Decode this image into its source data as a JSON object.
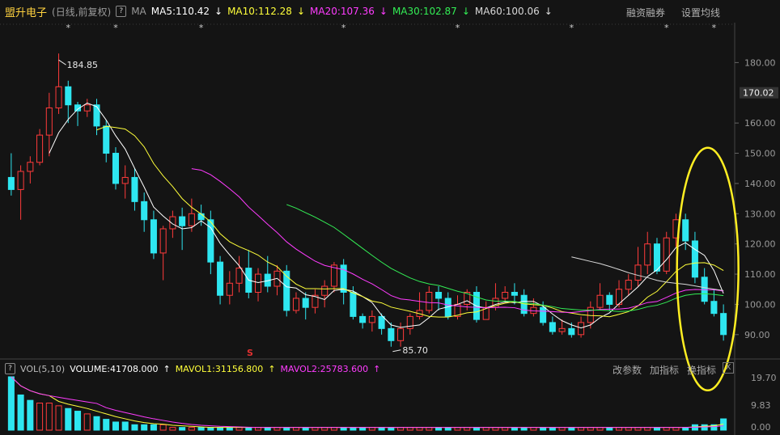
{
  "header": {
    "stock_name": "盟升电子",
    "mode": "(日线,前复权)",
    "help_icon": "?",
    "ma_label": "MA",
    "ma5": "MA5:110.42",
    "ma10": "MA10:112.28",
    "ma20": "MA20:107.36",
    "ma30": "MA30:102.87",
    "ma60": "MA60:100.06",
    "arrow_down": "↓",
    "link_margin": "融资融券",
    "link_settings": "设置均线"
  },
  "colors": {
    "up": "#ff3b3b",
    "down": "#2ee6f0",
    "ma5": "#ffffff",
    "ma10": "#ffff3a",
    "ma20": "#ff3cff",
    "ma30": "#33ee55",
    "ma60": "#d8d8d8",
    "ellipse": "#ffee22"
  },
  "price_axis": {
    "labels": [
      "180.00",
      "170.02",
      "160.00",
      "150.00",
      "140.00",
      "130.00",
      "120.00",
      "110.00",
      "100.00",
      "90.00"
    ],
    "values": [
      180,
      170.02,
      160,
      150,
      140,
      130,
      120,
      110,
      100,
      90
    ],
    "current": "170.02"
  },
  "annotations": {
    "high": "184.85",
    "low": "85.70",
    "s_mark": "S",
    "stars": "*"
  },
  "volume_panel": {
    "help_icon": "?",
    "title": "VOL(5,10)",
    "volume": "VOLUME:41708.000",
    "mavol1": "MAVOL1:31156.800",
    "mavol2": "MAVOL2:25783.600",
    "arrow_up": "↑",
    "link_params": "改参数",
    "link_add": "加指标",
    "link_switch": "换指标",
    "close": "X",
    "axis_labels": [
      "19.70",
      "9.83",
      "0.00"
    ]
  },
  "chart_data": {
    "type": "candlestick",
    "ylim": [
      83,
      190
    ],
    "candles": [
      [
        142,
        138,
        150,
        136
      ],
      [
        138,
        144,
        146,
        128
      ],
      [
        144,
        147,
        149,
        140
      ],
      [
        147,
        156,
        158,
        146
      ],
      [
        156,
        165,
        170,
        149
      ],
      [
        165,
        172,
        183,
        163
      ],
      [
        172,
        166,
        174,
        160
      ],
      [
        166,
        164,
        167,
        159
      ],
      [
        164,
        166,
        168,
        162
      ],
      [
        166,
        159,
        168,
        156
      ],
      [
        159,
        150,
        161,
        147
      ],
      [
        150,
        140,
        152,
        138
      ],
      [
        140,
        142,
        146,
        135
      ],
      [
        142,
        134,
        145,
        131
      ],
      [
        134,
        128,
        137,
        124
      ],
      [
        128,
        117,
        131,
        115
      ],
      [
        117,
        125,
        126,
        108
      ],
      [
        125,
        129,
        131,
        122
      ],
      [
        129,
        126,
        132,
        118
      ],
      [
        126,
        130,
        135,
        124
      ],
      [
        130,
        128,
        133,
        126
      ],
      [
        128,
        114,
        131,
        110
      ],
      [
        114,
        103,
        116,
        100
      ],
      [
        103,
        107,
        111,
        100
      ],
      [
        107,
        112,
        116,
        104
      ],
      [
        112,
        104,
        118,
        102
      ],
      [
        104,
        110,
        112,
        101
      ],
      [
        110,
        106,
        116,
        104
      ],
      [
        106,
        111,
        113,
        103
      ],
      [
        111,
        98,
        113,
        96
      ],
      [
        98,
        102,
        104,
        97
      ],
      [
        102,
        99,
        104,
        95
      ],
      [
        99,
        103,
        105,
        97
      ],
      [
        103,
        106,
        108,
        99
      ],
      [
        106,
        113,
        114,
        104
      ],
      [
        113,
        104,
        115,
        100
      ],
      [
        104,
        96,
        106,
        95
      ],
      [
        96,
        94,
        97,
        92
      ],
      [
        94,
        96,
        98,
        91
      ],
      [
        96,
        92,
        97,
        90
      ],
      [
        92,
        88,
        94,
        86
      ],
      [
        88,
        92,
        94,
        86
      ],
      [
        92,
        96,
        97,
        90
      ],
      [
        96,
        98,
        104,
        95
      ],
      [
        98,
        104,
        106,
        97
      ],
      [
        104,
        102,
        106,
        98
      ],
      [
        102,
        96,
        104,
        95
      ],
      [
        96,
        100,
        103,
        95
      ],
      [
        100,
        104,
        105,
        98
      ],
      [
        104,
        95,
        106,
        94
      ],
      [
        95,
        99,
        101,
        95
      ],
      [
        99,
        102,
        107,
        98
      ],
      [
        102,
        104,
        106,
        101
      ],
      [
        104,
        103,
        107,
        100
      ],
      [
        103,
        97,
        105,
        96
      ],
      [
        97,
        99,
        102,
        96
      ],
      [
        99,
        94,
        101,
        93
      ],
      [
        94,
        91,
        96,
        90
      ],
      [
        91,
        92,
        95,
        90
      ],
      [
        92,
        90,
        94,
        89
      ],
      [
        90,
        94,
        96,
        89
      ],
      [
        94,
        99,
        101,
        92
      ],
      [
        99,
        103,
        107,
        98
      ],
      [
        103,
        100,
        104,
        98
      ],
      [
        100,
        105,
        108,
        99
      ],
      [
        105,
        108,
        110,
        103
      ],
      [
        108,
        113,
        119,
        106
      ],
      [
        113,
        120,
        124,
        110
      ],
      [
        120,
        111,
        122,
        110
      ],
      [
        111,
        122,
        124,
        110
      ],
      [
        122,
        128,
        130,
        119
      ],
      [
        128,
        121,
        130,
        118
      ],
      [
        121,
        109,
        124,
        107
      ],
      [
        109,
        101,
        112,
        100
      ],
      [
        101,
        97,
        105,
        96
      ],
      [
        97,
        90,
        100,
        88
      ]
    ],
    "ma20_start": 14,
    "ma30_start": 22,
    "ma60_start": 47,
    "volume": [
      [
        19.7,
        0
      ],
      [
        13,
        0
      ],
      [
        11,
        0
      ],
      [
        10,
        1
      ],
      [
        10,
        1
      ],
      [
        9,
        1
      ],
      [
        8,
        0
      ],
      [
        7,
        0
      ],
      [
        6,
        1
      ],
      [
        5,
        0
      ],
      [
        4,
        0
      ],
      [
        3,
        0
      ],
      [
        3,
        0
      ],
      [
        2,
        0
      ],
      [
        2,
        0
      ],
      [
        2,
        0
      ],
      [
        2,
        1
      ],
      [
        1,
        1
      ],
      [
        1,
        0
      ],
      [
        1,
        1
      ],
      [
        1,
        0
      ],
      [
        1,
        0
      ],
      [
        1,
        0
      ],
      [
        1,
        0
      ],
      [
        1,
        1
      ],
      [
        1,
        0
      ],
      [
        1,
        1
      ],
      [
        1,
        0
      ],
      [
        1,
        1
      ],
      [
        1,
        0
      ],
      [
        1,
        1
      ],
      [
        1,
        0
      ],
      [
        1,
        1
      ],
      [
        1,
        1
      ],
      [
        1,
        1
      ],
      [
        1,
        0
      ],
      [
        1,
        0
      ],
      [
        1,
        0
      ],
      [
        1,
        1
      ],
      [
        1,
        0
      ],
      [
        1,
        0
      ],
      [
        1,
        1
      ],
      [
        1,
        1
      ],
      [
        1,
        1
      ],
      [
        1,
        1
      ],
      [
        1,
        0
      ],
      [
        1,
        0
      ],
      [
        1,
        1
      ],
      [
        1,
        1
      ],
      [
        1,
        0
      ],
      [
        1,
        1
      ],
      [
        1,
        1
      ],
      [
        1,
        1
      ],
      [
        1,
        0
      ],
      [
        1,
        0
      ],
      [
        1,
        1
      ],
      [
        1,
        0
      ],
      [
        1,
        0
      ],
      [
        1,
        1
      ],
      [
        1,
        0
      ],
      [
        1,
        1
      ],
      [
        1,
        1
      ],
      [
        1,
        1
      ],
      [
        1,
        0
      ],
      [
        1,
        1
      ],
      [
        1,
        1
      ],
      [
        1,
        1
      ],
      [
        1,
        1
      ],
      [
        1,
        0
      ],
      [
        1,
        1
      ],
      [
        1,
        1
      ],
      [
        1,
        0
      ],
      [
        2,
        0
      ],
      [
        2,
        0
      ],
      [
        2,
        0
      ],
      [
        4.17,
        0
      ]
    ],
    "vol_ylim": [
      0,
      19.7
    ]
  }
}
